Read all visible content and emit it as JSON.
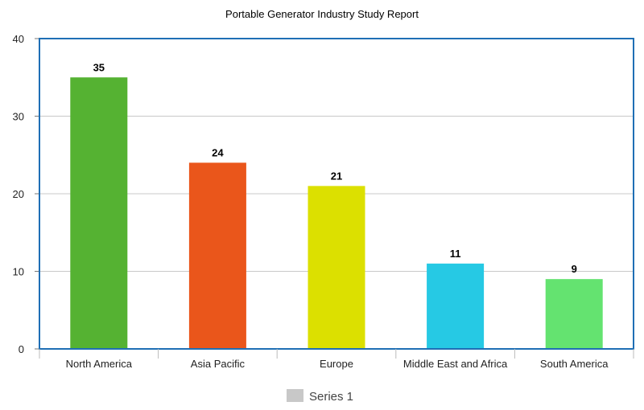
{
  "chart_data": {
    "type": "bar",
    "title": "Portable Generator Industry Study Report",
    "categories": [
      "North America",
      "Asia Pacific",
      "Europe",
      "Middle East and Africa",
      "South America"
    ],
    "series": [
      {
        "name": "Series 1",
        "values": [
          35,
          24,
          21,
          11,
          9
        ]
      }
    ],
    "bar_colors": [
      "#55b232",
      "#ea561b",
      "#dce000",
      "#26c9e4",
      "#64e370"
    ],
    "legend_swatch_color": "#c8c8c8",
    "plot_border_color": "#1f6fb5",
    "gridline_color": "#c8c8c8",
    "ylim": [
      0,
      40
    ],
    "yticks": [
      "0",
      "10",
      "20",
      "30",
      "40"
    ],
    "grid": true,
    "legend_position": "bottom",
    "xlabel": "",
    "ylabel": ""
  }
}
